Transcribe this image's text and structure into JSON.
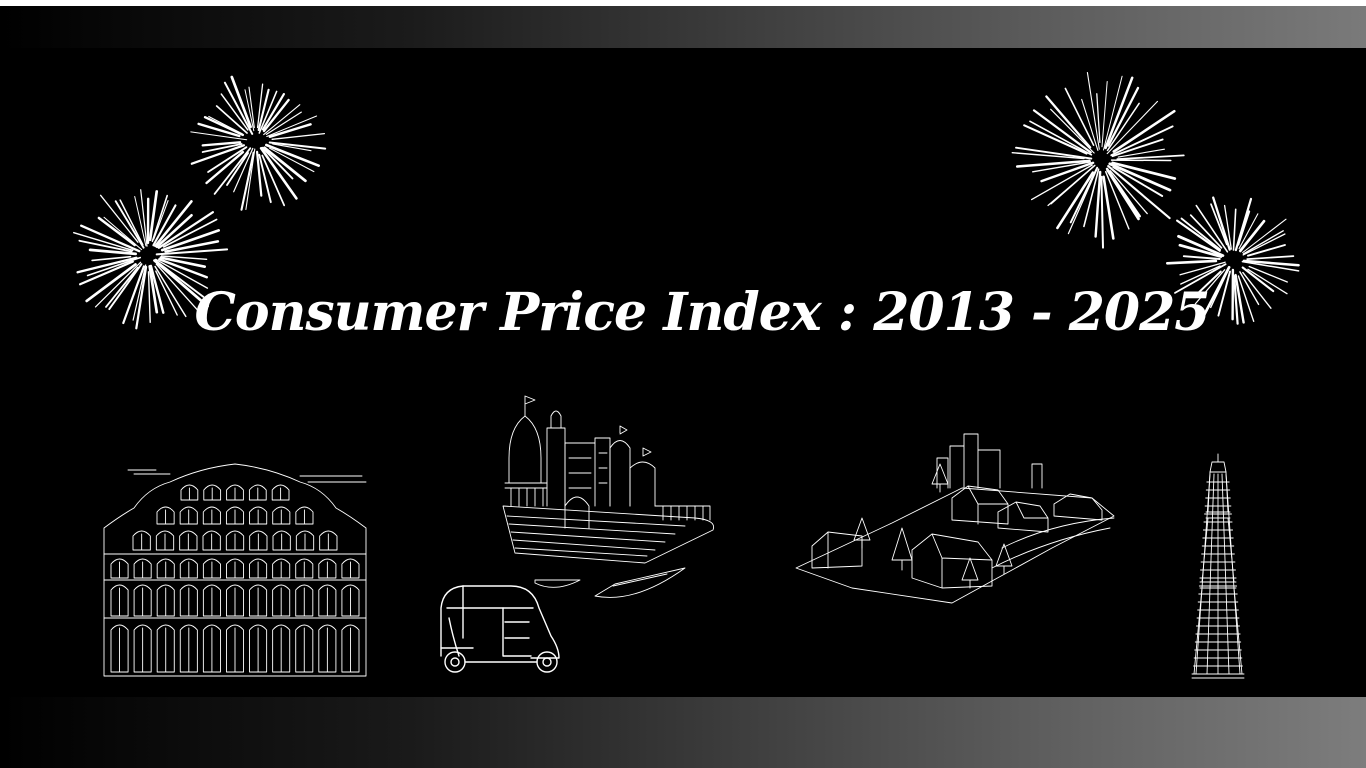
{
  "title": "Consumer Price Index : 2013 - 2025",
  "colors": {
    "background": "#000000",
    "text": "#ffffff",
    "band_light": "#7a7a7a"
  },
  "illustrations": [
    "fireworks-left",
    "fireworks-right",
    "hawa-mahal",
    "varanasi-ghats",
    "auto-rickshaw",
    "village-town",
    "qutub-minar"
  ]
}
